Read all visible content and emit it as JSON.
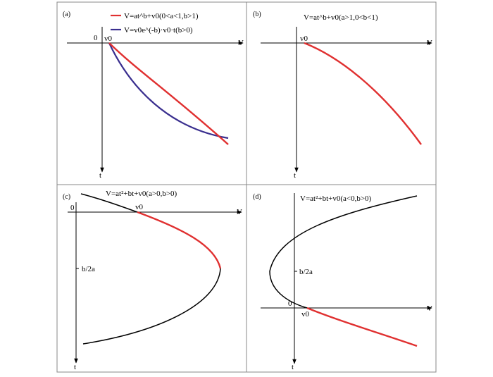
{
  "colors": {
    "red": "#e03030",
    "blue": "#3a2f8f",
    "black": "#000000",
    "frame": "#888888"
  },
  "panels": [
    {
      "label": "(a)",
      "formula_red": "V=at^b+v0(0<a<1,b>1)",
      "formula_blue": "V=v0e^(-b)·v0·t(b>0)",
      "axis_v": "V",
      "axis_t": "t",
      "origin": "0",
      "v0": "v0"
    },
    {
      "label": "(b)",
      "formula": "V=at^b+v0(a>1,0<b<1)",
      "axis_v": "V",
      "axis_t": "t",
      "v0": "v0"
    },
    {
      "label": "(c)",
      "formula": "V=at²+bt+v0(a>0,b>0)",
      "axis_v": "V",
      "axis_t": "t",
      "origin": "0",
      "v0": "v0",
      "marker": "b/2a"
    },
    {
      "label": "(d)",
      "formula": "V=at²+bt+v0(a<0,b>0)",
      "axis_v": "V",
      "axis_t": "t",
      "origin": "0",
      "v0": "v0",
      "marker": "b/2a"
    }
  ]
}
